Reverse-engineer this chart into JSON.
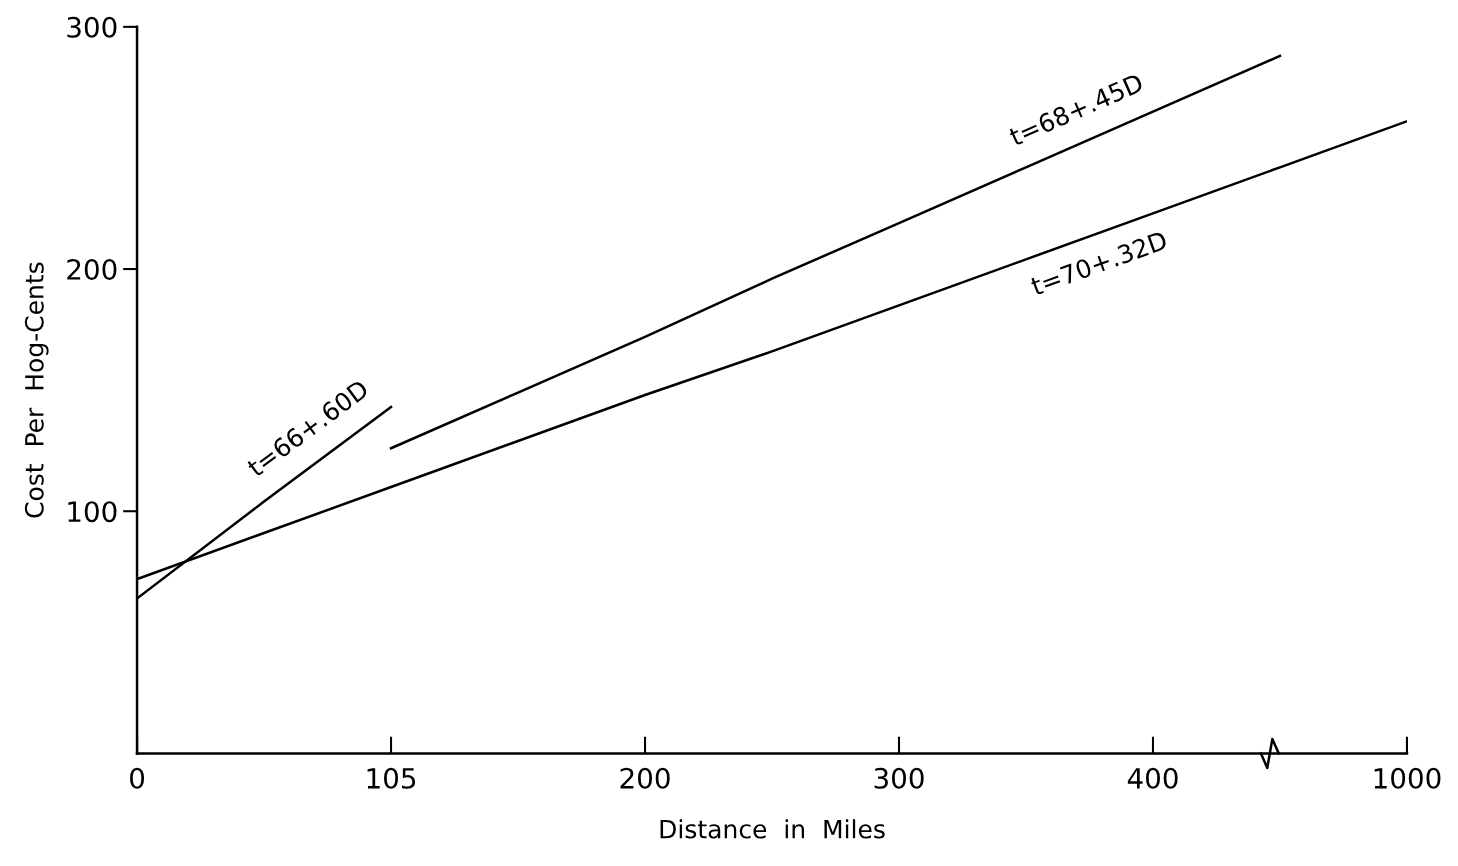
{
  "chart_data": {
    "type": "line",
    "xlabel": "Distance  in  Miles",
    "ylabel": "Cost  Per  Hog-Cents",
    "categories": [
      "0",
      null,
      "105",
      null,
      "200",
      null,
      "300",
      null,
      "400",
      null,
      "1000"
    ],
    "ylim": [
      0,
      300
    ],
    "yticks": [
      100,
      200,
      300
    ],
    "series": [
      {
        "name": "t=66+.60D",
        "color": "#000000",
        "values": [
          64,
          104,
          143,
          null,
          null,
          null,
          null,
          null,
          null,
          null,
          null
        ]
      },
      {
        "name": "t=68+.45D",
        "color": "#000000",
        "values": [
          null,
          null,
          126,
          149,
          172,
          196,
          219,
          242,
          265,
          288,
          null
        ]
      },
      {
        "name": "t=70+.32D",
        "color": "#000000",
        "values": [
          72,
          91,
          110,
          129,
          148,
          166,
          185,
          204,
          223,
          242,
          261
        ]
      }
    ],
    "grid": false,
    "legend": false,
    "marker": "none",
    "line_style": "solid"
  }
}
